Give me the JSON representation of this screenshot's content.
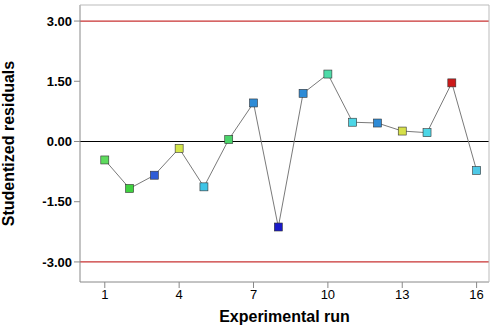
{
  "chart_data": {
    "type": "line",
    "x_label": "Experimental run",
    "y_label": "Studentized residuals",
    "x": [
      1,
      2,
      3,
      4,
      5,
      6,
      7,
      8,
      9,
      10,
      11,
      12,
      13,
      14,
      15,
      16
    ],
    "values": [
      -0.46,
      -1.17,
      -0.84,
      -0.17,
      -1.13,
      0.05,
      0.96,
      -2.13,
      1.2,
      1.68,
      0.48,
      0.46,
      0.26,
      0.22,
      1.46,
      -0.72
    ],
    "color": "#7a7a7a",
    "marker": "square",
    "colors": [
      "#5ddb5d",
      "#3fd13f",
      "#2f5cd6",
      "#d4e64a",
      "#3fc4e6",
      "#4ad46a",
      "#2e8bd6",
      "#1a1ac8",
      "#2e8bd6",
      "#4ddba8",
      "#4dd6e6",
      "#2e8bd6",
      "#d6e04a",
      "#4dd6e6",
      "#cc1a1a",
      "#4dc8e6"
    ],
    "xlim": [
      0,
      16.5
    ],
    "ylim": [
      -3.5,
      3.4
    ],
    "xticks": [
      1,
      4,
      7,
      10,
      13,
      16
    ],
    "yticks": [
      {
        "value": -3,
        "label": "-3.00"
      },
      {
        "value": -1.5,
        "label": "-1.50"
      },
      {
        "value": 0,
        "label": "0.00"
      },
      {
        "value": 1.5,
        "label": "1.50"
      },
      {
        "value": 3,
        "label": "3.00"
      }
    ],
    "reference_lines": [
      {
        "value": 3,
        "color": "#c83232"
      },
      {
        "value": 0,
        "color": "#000000"
      },
      {
        "value": -3,
        "color": "#c83232"
      }
    ]
  }
}
